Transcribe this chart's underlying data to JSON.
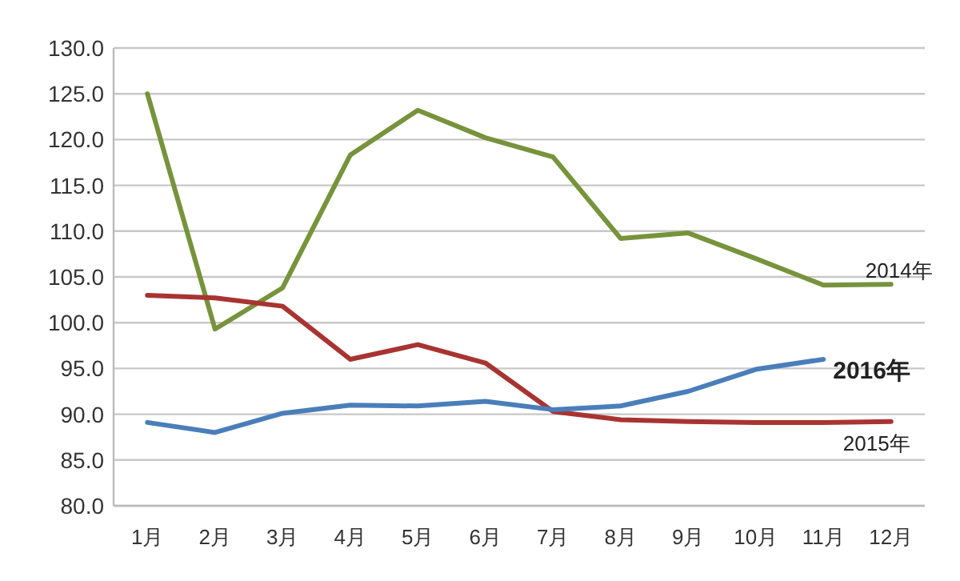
{
  "chart_data": {
    "type": "line",
    "categories": [
      "1月",
      "2月",
      "3月",
      "4月",
      "5月",
      "6月",
      "7月",
      "8月",
      "9月",
      "10月",
      "11月",
      "12月"
    ],
    "ylim": [
      80,
      130
    ],
    "yticks": [
      {
        "value": 80,
        "label": "80.0"
      },
      {
        "value": 85,
        "label": "85.0"
      },
      {
        "value": 90,
        "label": "90.0"
      },
      {
        "value": 95,
        "label": "95.0"
      },
      {
        "value": 100,
        "label": "100.0"
      },
      {
        "value": 105,
        "label": "105.0"
      },
      {
        "value": 110,
        "label": "110.0"
      },
      {
        "value": 115,
        "label": "115.0"
      },
      {
        "value": 120,
        "label": "120.0"
      },
      {
        "value": 125,
        "label": "125.0"
      },
      {
        "value": 130,
        "label": "130.0"
      }
    ],
    "grid": "y",
    "legend": false,
    "marker": "none",
    "line_style": "solid",
    "series": [
      {
        "name": "2014年",
        "color": "#77933c",
        "values": [
          125.0,
          99.3,
          103.8,
          118.3,
          123.2,
          120.2,
          118.1,
          109.2,
          109.8,
          107.0,
          104.1,
          104.2
        ]
      },
      {
        "name": "2015年",
        "color": "#a83432",
        "values": [
          103.0,
          102.7,
          101.8,
          96.0,
          97.6,
          95.6,
          90.3,
          89.4,
          89.2,
          89.1,
          89.1,
          89.2
        ]
      },
      {
        "name": "2016年",
        "color": "#4a7ebb",
        "values": [
          89.1,
          88.0,
          90.1,
          91.0,
          90.9,
          91.4,
          90.5,
          90.9,
          92.5,
          94.9,
          96.0,
          null
        ]
      }
    ]
  }
}
